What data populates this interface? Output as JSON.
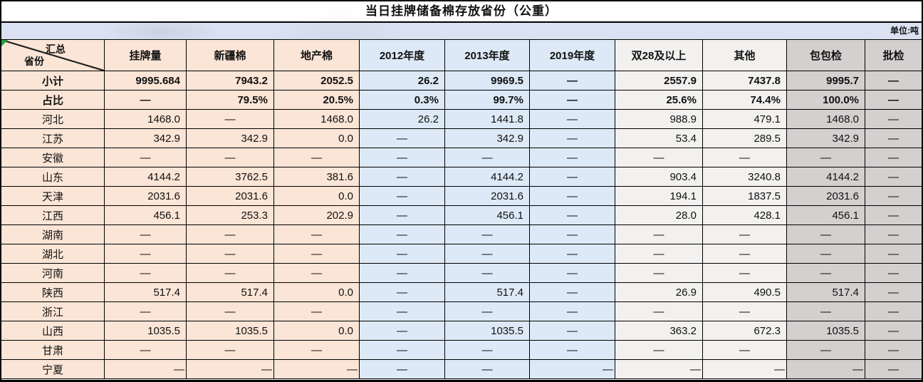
{
  "title": "当日挂牌储备棉存放省份（公重）",
  "unit_label": "单位:吨",
  "corner": {
    "top": "汇总",
    "bottom": "省份"
  },
  "colors": {
    "peach": "#fbe5d6",
    "blue": "#dde9f6",
    "light": "#f2f1ef",
    "gray": "#d3d0cf",
    "unit_band": "#d9e1f2",
    "border": "#000000",
    "flag_green": "#1fa23d"
  },
  "columns": [
    {
      "label": "挂牌量",
      "group": "peach"
    },
    {
      "label": "新疆棉",
      "group": "peach"
    },
    {
      "label": "地产棉",
      "group": "peach"
    },
    {
      "label": "2012年度",
      "group": "blue"
    },
    {
      "label": "2013年度",
      "group": "blue"
    },
    {
      "label": "2019年度",
      "group": "blue"
    },
    {
      "label": "双28及以上",
      "group": "light"
    },
    {
      "label": "其他",
      "group": "light"
    },
    {
      "label": "包包检",
      "group": "gray"
    },
    {
      "label": "批检",
      "group": "gray"
    }
  ],
  "rows": [
    {
      "label": "小计",
      "bold": true,
      "cells": [
        "9995.684",
        "7943.2",
        "2052.5",
        "26.2",
        "9969.5",
        "—",
        "2557.9",
        "7437.8",
        "9995.7",
        "—"
      ]
    },
    {
      "label": "占比",
      "bold": true,
      "cells": [
        "—",
        "79.5%",
        "20.5%",
        "0.3%",
        "99.7%",
        "—",
        "25.6%",
        "74.4%",
        "100.0%",
        "—"
      ]
    },
    {
      "label": "河北",
      "cells": [
        "1468.0",
        "—",
        "1468.0",
        "26.2",
        "1441.8",
        "—",
        "988.9",
        "479.1",
        "1468.0",
        "—"
      ]
    },
    {
      "label": "江苏",
      "cells": [
        "342.9",
        "342.9",
        "0.0",
        "—",
        "342.9",
        "—",
        "53.4",
        "289.5",
        "342.9",
        "—"
      ]
    },
    {
      "label": "安徽",
      "cells": [
        "—",
        "—",
        "—",
        "—",
        "—",
        "—",
        "—",
        "—",
        "—",
        "—"
      ]
    },
    {
      "label": "山东",
      "cells": [
        "4144.2",
        "3762.5",
        "381.6",
        "—",
        "4144.2",
        "—",
        "903.4",
        "3240.8",
        "4144.2",
        "—"
      ]
    },
    {
      "label": "天津",
      "cells": [
        "2031.6",
        "2031.6",
        "0.0",
        "—",
        "2031.6",
        "—",
        "194.1",
        "1837.5",
        "2031.6",
        "—"
      ]
    },
    {
      "label": "江西",
      "cells": [
        "456.1",
        "253.3",
        "202.9",
        "—",
        "456.1",
        "—",
        "28.0",
        "428.1",
        "456.1",
        "—"
      ]
    },
    {
      "label": "湖南",
      "cells": [
        "—",
        "—",
        "—",
        "—",
        "—",
        "—",
        "—",
        "—",
        "—",
        "—"
      ]
    },
    {
      "label": "湖北",
      "cells": [
        "—",
        "—",
        "—",
        "—",
        "—",
        "—",
        "—",
        "—",
        "—",
        "—"
      ]
    },
    {
      "label": "河南",
      "cells": [
        "—",
        "—",
        "—",
        "—",
        "—",
        "—",
        "—",
        "—",
        "—",
        "—"
      ]
    },
    {
      "label": "陕西",
      "cells": [
        "517.4",
        "517.4",
        "0.0",
        "—",
        "517.4",
        "—",
        "26.9",
        "490.5",
        "517.4",
        "—"
      ]
    },
    {
      "label": "浙江",
      "cells": [
        "—",
        "—",
        "—",
        "—",
        "—",
        "—",
        "—",
        "—",
        "—",
        "—"
      ]
    },
    {
      "label": "山西",
      "cells": [
        "1035.5",
        "1035.5",
        "0.0",
        "—",
        "1035.5",
        "—",
        "363.2",
        "672.3",
        "1035.5",
        "—"
      ]
    },
    {
      "label": "甘肃",
      "cells": [
        "—",
        "—",
        "—",
        "—",
        "—",
        "—",
        "—",
        "—",
        "—",
        "—"
      ]
    },
    {
      "label": "宁夏",
      "cells": [
        "—",
        "—",
        "—",
        "—",
        "—",
        "—",
        "—",
        "—",
        "—",
        "—"
      ],
      "flush": [
        0,
        1,
        2,
        5,
        6,
        7,
        8
      ]
    }
  ]
}
